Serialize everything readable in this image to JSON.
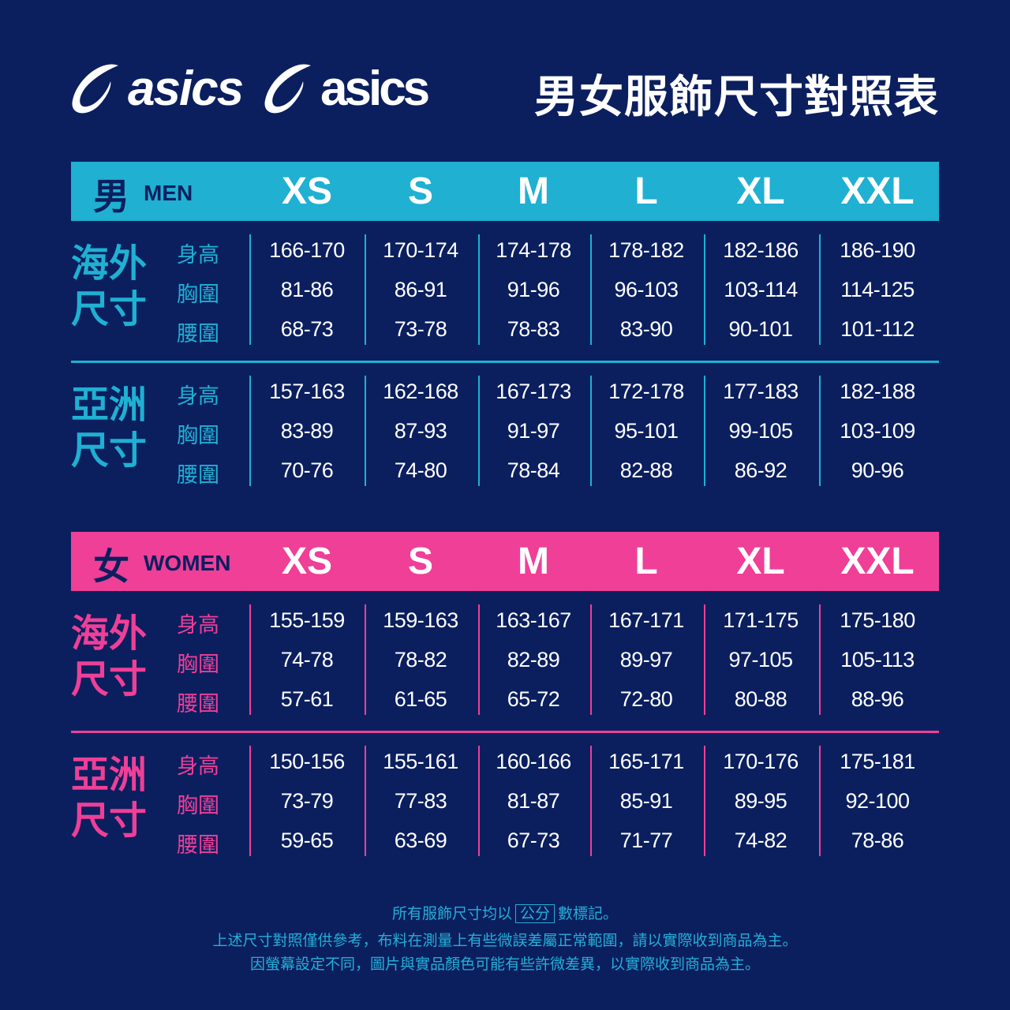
{
  "brand": {
    "logo_text_1": "asics",
    "logo_text_2": "asics"
  },
  "title": "男女服飾尺寸對照表",
  "colors": {
    "background": "#0b1f5f",
    "men_accent": "#1fb0d2",
    "women_accent": "#ef3f97",
    "text": "#ffffff"
  },
  "sizes": [
    "XS",
    "S",
    "M",
    "L",
    "XL",
    "XXL"
  ],
  "sections": [
    {
      "label_zh": "男",
      "label_en": "MEN",
      "accent": "#1fb0d2",
      "groups": [
        {
          "label_1": "海外",
          "label_2": "尺寸",
          "rows": [
            {
              "label": "身高",
              "values": [
                "166-170",
                "170-174",
                "174-178",
                "178-182",
                "182-186",
                "186-190"
              ]
            },
            {
              "label": "胸圍",
              "values": [
                "81-86",
                "86-91",
                "91-96",
                "96-103",
                "103-114",
                "114-125"
              ]
            },
            {
              "label": "腰圍",
              "values": [
                "68-73",
                "73-78",
                "78-83",
                "83-90",
                "90-101",
                "101-112"
              ]
            }
          ]
        },
        {
          "label_1": "亞洲",
          "label_2": "尺寸",
          "rows": [
            {
              "label": "身高",
              "values": [
                "157-163",
                "162-168",
                "167-173",
                "172-178",
                "177-183",
                "182-188"
              ]
            },
            {
              "label": "胸圍",
              "values": [
                "83-89",
                "87-93",
                "91-97",
                "95-101",
                "99-105",
                "103-109"
              ]
            },
            {
              "label": "腰圍",
              "values": [
                "70-76",
                "74-80",
                "78-84",
                "82-88",
                "86-92",
                "90-96"
              ]
            }
          ]
        }
      ]
    },
    {
      "label_zh": "女",
      "label_en": "WOMEN",
      "accent": "#ef3f97",
      "groups": [
        {
          "label_1": "海外",
          "label_2": "尺寸",
          "rows": [
            {
              "label": "身高",
              "values": [
                "155-159",
                "159-163",
                "163-167",
                "167-171",
                "171-175",
                "175-180"
              ]
            },
            {
              "label": "胸圍",
              "values": [
                "74-78",
                "78-82",
                "82-89",
                "89-97",
                "97-105",
                "105-113"
              ]
            },
            {
              "label": "腰圍",
              "values": [
                "57-61",
                "61-65",
                "65-72",
                "72-80",
                "80-88",
                "88-96"
              ]
            }
          ]
        },
        {
          "label_1": "亞洲",
          "label_2": "尺寸",
          "rows": [
            {
              "label": "身高",
              "values": [
                "150-156",
                "155-161",
                "160-166",
                "165-171",
                "170-176",
                "175-181"
              ]
            },
            {
              "label": "胸圍",
              "values": [
                "73-79",
                "77-83",
                "81-87",
                "85-91",
                "89-95",
                "92-100"
              ]
            },
            {
              "label": "腰圍",
              "values": [
                "59-65",
                "63-69",
                "67-73",
                "71-77",
                "74-82",
                "78-86"
              ]
            }
          ]
        }
      ]
    }
  ],
  "footer": {
    "line1_pre": "所有服飾尺寸均以",
    "line1_unit": "公分",
    "line1_post": "數標記。",
    "line2": "上述尺寸對照僅供參考，布料在測量上有些微誤差屬正常範圍，請以實際收到商品為主。",
    "line3": "因螢幕設定不同，圖片與實品顏色可能有些許微差異，以實際收到商品為主。"
  }
}
